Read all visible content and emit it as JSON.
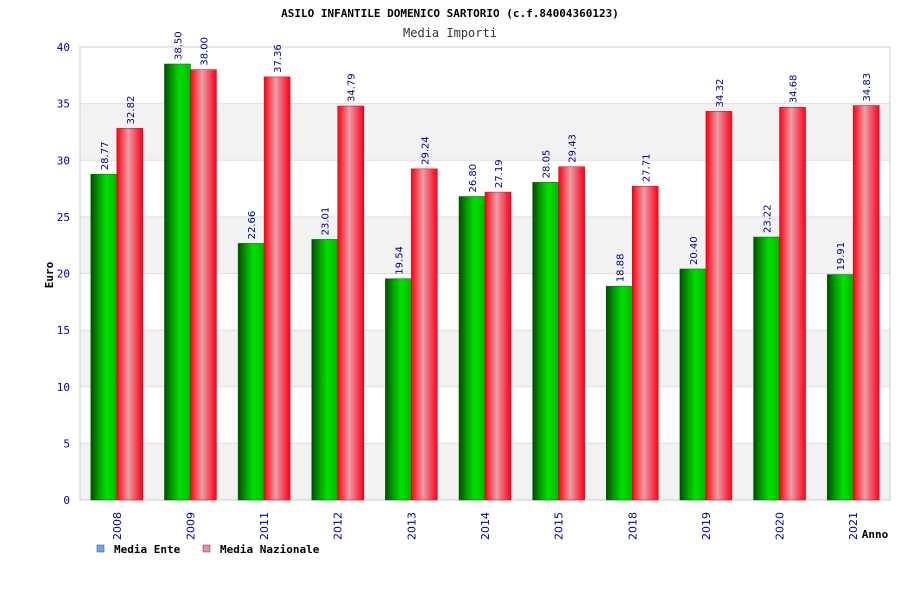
{
  "chart_data": {
    "type": "bar",
    "title": "ASILO INFANTILE DOMENICO SARTORIO (c.f.84004360123)",
    "subtitle": "Media Importi",
    "xlabel": "Anno",
    "ylabel": "Euro",
    "ylim": [
      0,
      40
    ],
    "yticks": [
      0,
      5,
      10,
      15,
      20,
      25,
      30,
      35,
      40
    ],
    "categories": [
      "2008",
      "2009",
      "2011",
      "2012",
      "2013",
      "2014",
      "2015",
      "2018",
      "2019",
      "2020",
      "2021"
    ],
    "series": [
      {
        "name": "Media Ente",
        "values": [
          28.77,
          38.5,
          22.66,
          23.01,
          19.54,
          26.8,
          28.05,
          18.88,
          20.4,
          23.22,
          19.91
        ],
        "labels": [
          "28.77",
          "38.50",
          "22.66",
          "23.01",
          "19.54",
          "26.80",
          "28.05",
          "18.88",
          "20.40",
          "23.22",
          "19.91"
        ],
        "color": "#00cc00",
        "legend_color": "#66aaee"
      },
      {
        "name": "Media Nazionale",
        "values": [
          32.82,
          38.0,
          37.36,
          34.79,
          29.24,
          27.19,
          29.43,
          27.71,
          34.32,
          34.68,
          34.83
        ],
        "labels": [
          "32.82",
          "38.00",
          "37.36",
          "34.79",
          "29.24",
          "27.19",
          "29.43",
          "27.71",
          "34.32",
          "34.68",
          "34.83"
        ],
        "color": "#ff1a2a",
        "legend_color": "#ee88bb"
      }
    ],
    "grid": true,
    "legend": "bottom-left",
    "colors": {
      "text_dark": "#000000",
      "tick_text": "#0000aa",
      "value_text": "#000088",
      "band": "#f2f2f2"
    }
  }
}
